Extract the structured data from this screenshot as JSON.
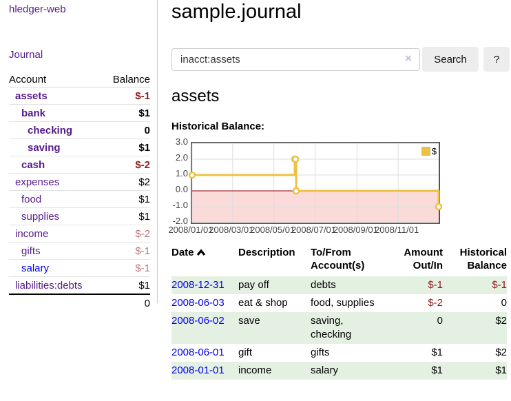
{
  "sidebar": {
    "brand": "hledger-web",
    "nav": {
      "journal": "Journal"
    },
    "table": {
      "headers": {
        "account": "Account",
        "balance": "Balance"
      },
      "accounts": [
        {
          "name": "assets",
          "balance": "$-1"
        },
        {
          "name": "bank",
          "balance": "$1"
        },
        {
          "name": "checking",
          "balance": "0"
        },
        {
          "name": "saving",
          "balance": "$1"
        },
        {
          "name": "cash",
          "balance": "$-2"
        },
        {
          "name": "expenses",
          "balance": "$2"
        },
        {
          "name": "food",
          "balance": "$1"
        },
        {
          "name": "supplies",
          "balance": "$1"
        },
        {
          "name": "income",
          "balance": "$-2"
        },
        {
          "name": "gifts",
          "balance": "$-1"
        },
        {
          "name": "salary",
          "balance": "$-1"
        },
        {
          "name": "liabilities:debts",
          "balance": "$1"
        }
      ],
      "total": "0"
    }
  },
  "header": {
    "title": "sample.journal"
  },
  "search": {
    "query": "inacct:assets",
    "clear_icon": "×",
    "button": "Search",
    "help_button": "?"
  },
  "account_page": {
    "heading": "assets",
    "chart_label": "Historical Balance:"
  },
  "chart_data": {
    "type": "line",
    "title": "Historical Balance",
    "step": true,
    "grid": true,
    "legend_position": "top-right",
    "x_range": [
      "2008-01-01",
      "2008-12-31"
    ],
    "y_range": [
      -2,
      3
    ],
    "series": [
      {
        "name": "$",
        "color": "#edc240",
        "points": [
          {
            "x": "2008-01-01",
            "y": 1
          },
          {
            "x": "2008-06-01",
            "y": 2
          },
          {
            "x": "2008-06-02",
            "y": 2
          },
          {
            "x": "2008-06-03",
            "y": 0
          },
          {
            "x": "2008-12-31",
            "y": -1
          }
        ]
      }
    ],
    "x_ticks": [
      {
        "x": "2008-01-01",
        "label": "2008/01/01"
      },
      {
        "x": "2008-03-01",
        "label": "2008/03/01"
      },
      {
        "x": "2008-05-01",
        "label": "2008/05/01"
      },
      {
        "x": "2008-07-01",
        "label": "2008/07/01"
      },
      {
        "x": "2008-09-01",
        "label": "2008/09/01"
      },
      {
        "x": "2008-11-01",
        "label": "2008/11/01"
      }
    ],
    "y_ticks": [
      {
        "y": 3,
        "label": "3.0"
      },
      {
        "y": 2,
        "label": "2.0"
      },
      {
        "y": 1,
        "label": "1.0"
      },
      {
        "y": 0,
        "label": "0.0"
      },
      {
        "y": -1,
        "label": "-1.0"
      },
      {
        "y": -2,
        "label": "-2.0"
      }
    ],
    "negative_fill": "#fbdada",
    "zero_line_color": "#8b0000",
    "grid_color": "#dddddd",
    "legend": {
      "label": "$",
      "swatch_color": "#edc240"
    }
  },
  "register": {
    "columns": {
      "date": "Date",
      "description": "Description",
      "accounts": "To/From Account(s)",
      "amount": "Amount Out/In",
      "balance": "Historical Balance"
    },
    "rows": [
      {
        "date": "2008-12-31",
        "description": "pay off",
        "accounts": "debts",
        "amount": "$-1",
        "balance": "$-1"
      },
      {
        "date": "2008-06-03",
        "description": "eat & shop",
        "accounts": "food, supplies",
        "amount": "$-2",
        "balance": "0"
      },
      {
        "date": "2008-06-02",
        "description": "save",
        "accounts": "saving, checking",
        "amount": "0",
        "balance": "$2"
      },
      {
        "date": "2008-06-01",
        "description": "gift",
        "accounts": "gifts",
        "amount": "$1",
        "balance": "$2"
      },
      {
        "date": "2008-01-01",
        "description": "income",
        "accounts": "salary",
        "amount": "$1",
        "balance": "$1"
      }
    ]
  }
}
